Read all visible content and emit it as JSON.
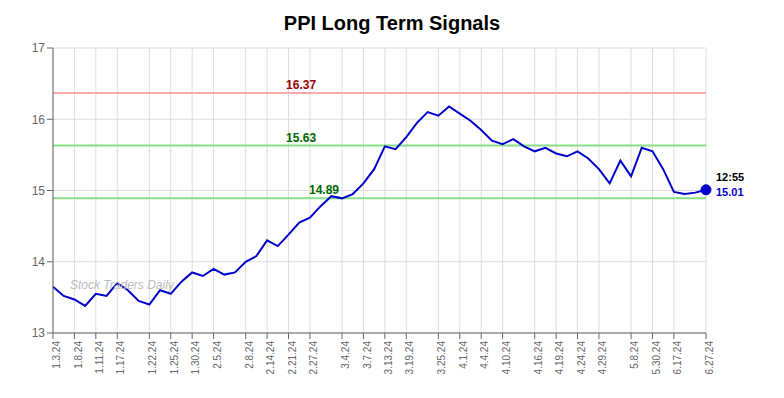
{
  "chart_data": {
    "type": "line",
    "title": "PPI Long Term Signals",
    "categories": [
      "1.3.24",
      null,
      "1.8.24",
      null,
      "1.11.24",
      null,
      "1.17.24",
      null,
      null,
      "1.22.24",
      null,
      "1.25.24",
      null,
      "1.30.24",
      null,
      "2.5.24",
      null,
      null,
      "2.8.24",
      null,
      "2.14.24",
      null,
      "2.21.24",
      null,
      "2.27.24",
      null,
      null,
      "3.4.24",
      null,
      "3.7.24",
      null,
      "3.13.24",
      null,
      "3.19.24",
      null,
      null,
      "3.25.24",
      null,
      "4.1.24",
      null,
      "4.4.24",
      null,
      "4.10.24",
      null,
      null,
      "4.16.24",
      null,
      "4.19.24",
      null,
      "4.24.24",
      null,
      "4.29.24",
      null,
      null,
      "5.8.24",
      null,
      "5.30.24",
      null,
      "6.17.24",
      null,
      null,
      "6.27.24"
    ],
    "values": [
      13.65,
      13.52,
      13.47,
      13.38,
      13.55,
      13.52,
      13.7,
      13.6,
      13.45,
      13.4,
      13.6,
      13.55,
      13.72,
      13.85,
      13.8,
      13.9,
      13.82,
      13.85,
      14.0,
      14.08,
      14.3,
      14.22,
      14.38,
      14.55,
      14.62,
      14.78,
      14.92,
      14.89,
      14.95,
      15.1,
      15.3,
      15.62,
      15.58,
      15.75,
      15.95,
      16.1,
      16.05,
      16.18,
      16.08,
      15.98,
      15.85,
      15.7,
      15.65,
      15.72,
      15.62,
      15.55,
      15.6,
      15.52,
      15.48,
      15.55,
      15.45,
      15.3,
      15.1,
      15.42,
      15.2,
      15.6,
      15.55,
      15.3,
      14.98,
      14.95,
      14.97,
      15.01
    ],
    "color": "#0000cc",
    "ylim": [
      13.0,
      17.0
    ],
    "yticks": [
      13,
      14,
      15,
      16,
      17
    ],
    "grid": true,
    "reference_lines": [
      {
        "value": 16.37,
        "color": "#ffaaaa",
        "label_color": "#990000"
      },
      {
        "value": 15.63,
        "color": "#88dd88",
        "label_color": "#006600"
      },
      {
        "value": 14.89,
        "color": "#88dd88",
        "label_color": "#006600"
      }
    ],
    "annotations": [
      {
        "text": "12:55",
        "color": "#000000"
      },
      {
        "text": "15.01",
        "color": "#0000cc"
      }
    ],
    "watermark": "Stock Traders Daily",
    "watermark_color": "#bbbbbb"
  }
}
